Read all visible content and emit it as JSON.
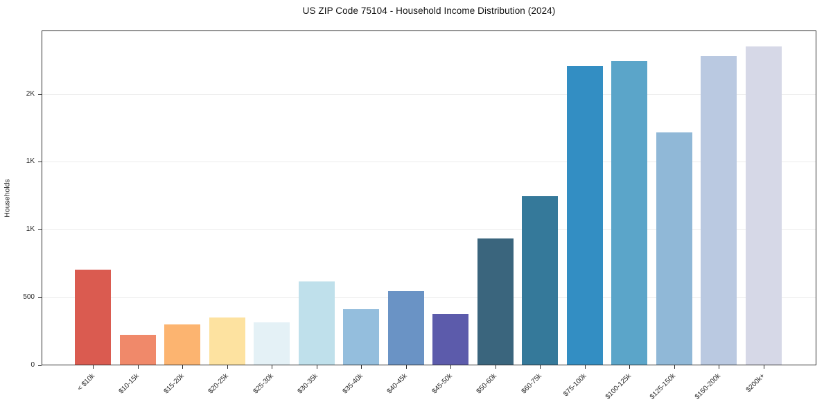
{
  "chart_data": {
    "type": "bar",
    "title": "US ZIP Code 75104 - Household Income Distribution (2024)",
    "xlabel": "",
    "ylabel": "Households",
    "categories": [
      "< $10k",
      "$10-15k",
      "$15-20k",
      "$20-25k",
      "$25-30k",
      "$30-35k",
      "$35-40k",
      "$40-45k",
      "$45-50k",
      "$50-60k",
      "$60-75k",
      "$75-100k",
      "$100-125k",
      "$125-150k",
      "$150-200k",
      "$200k+"
    ],
    "values": [
      700,
      218,
      295,
      350,
      313,
      611,
      410,
      543,
      373,
      931,
      1240,
      2202,
      2238,
      1710,
      2273,
      2345
    ],
    "bar_colors": [
      "#da5b50",
      "#f0896a",
      "#fcb470",
      "#fde2a0",
      "#e4f1f6",
      "#bfe0eb",
      "#94bedd",
      "#6a93c5",
      "#5c5bab",
      "#3a657d",
      "#35799a",
      "#338ec3",
      "#5ba5c9",
      "#90b8d7",
      "#bac9e1",
      "#d6d8e7"
    ],
    "ylim": [
      0,
      2468
    ],
    "yticks": [
      {
        "value": 0,
        "label": "0"
      },
      {
        "value": 500,
        "label": "500"
      },
      {
        "value": 1000,
        "label": "1K"
      },
      {
        "value": 1500,
        "label": "1K"
      },
      {
        "value": 2000,
        "label": "2K"
      }
    ],
    "grid": "horizontal",
    "legend_position": "none"
  },
  "colors": {
    "background": "#ffffff",
    "gridline": "#ececec",
    "spine": "#2b2b2b",
    "title_text": "#111111",
    "tick_text": "#262626"
  }
}
